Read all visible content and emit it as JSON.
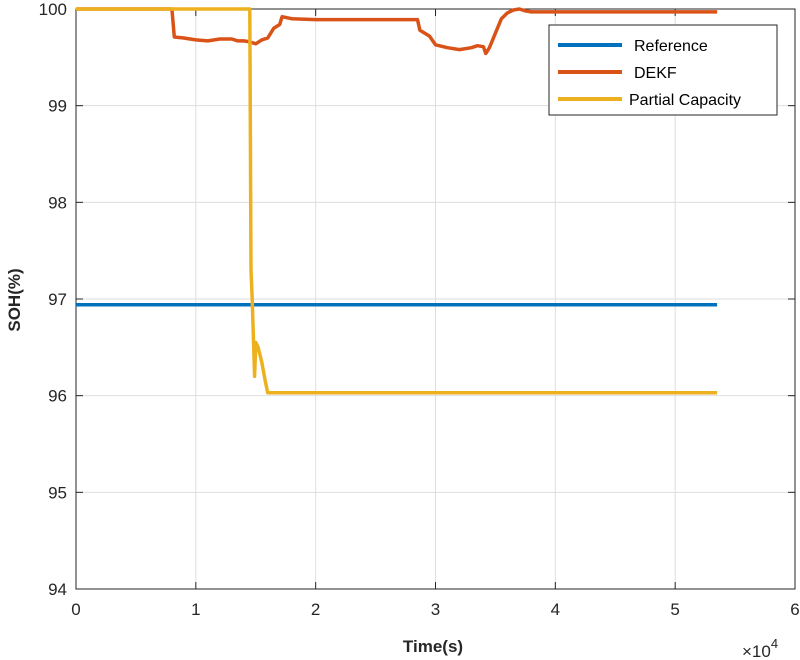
{
  "chart_data": {
    "type": "line",
    "title": "",
    "xlabel": "Time(s)",
    "ylabel": "SOH(%)",
    "x_exponent_label": "×10",
    "x_exponent_power": "4",
    "xlim": [
      0,
      6
    ],
    "ylim": [
      94,
      100
    ],
    "x_ticks": [
      0,
      1,
      2,
      3,
      4,
      5,
      6
    ],
    "y_ticks": [
      94,
      95,
      96,
      97,
      98,
      99,
      100
    ],
    "x_tick_labels": [
      "0",
      "1",
      "2",
      "3",
      "4",
      "5",
      "6"
    ],
    "y_tick_labels": [
      "94",
      "95",
      "96",
      "97",
      "98",
      "99",
      "100"
    ],
    "grid": true,
    "legend_position": "top-right",
    "series": [
      {
        "name": "Reference",
        "color": "#0072BD",
        "x": [
          0,
          5.35
        ],
        "y": [
          96.94,
          96.94
        ]
      },
      {
        "name": "DEKF",
        "color": "#D95319",
        "x": [
          0,
          0.8,
          0.82,
          0.9,
          1.0,
          1.1,
          1.2,
          1.3,
          1.35,
          1.4,
          1.45,
          1.5,
          1.55,
          1.6,
          1.65,
          1.7,
          1.72,
          1.8,
          2.0,
          2.5,
          2.85,
          2.87,
          2.95,
          3.0,
          3.1,
          3.2,
          3.3,
          3.35,
          3.4,
          3.42,
          3.45,
          3.5,
          3.55,
          3.6,
          3.65,
          3.7,
          3.75,
          3.8,
          4.0,
          5.35
        ],
        "y": [
          100,
          100,
          99.71,
          99.7,
          99.68,
          99.67,
          99.69,
          99.69,
          99.67,
          99.67,
          99.66,
          99.64,
          99.68,
          99.7,
          99.8,
          99.84,
          99.92,
          99.9,
          99.89,
          99.89,
          99.89,
          99.78,
          99.72,
          99.63,
          99.6,
          99.58,
          99.6,
          99.62,
          99.61,
          99.54,
          99.6,
          99.75,
          99.9,
          99.96,
          99.99,
          100,
          99.98,
          99.97,
          99.97,
          99.97
        ]
      },
      {
        "name": "Partial Capacity",
        "color": "#EDB120",
        "x": [
          0,
          1.45,
          1.46,
          1.47,
          1.48,
          1.49,
          1.5,
          1.52,
          1.55,
          1.58,
          1.6,
          1.7,
          2.0,
          3.0,
          5.35
        ],
        "y": [
          100,
          100,
          97.3,
          97.0,
          96.6,
          96.2,
          96.55,
          96.5,
          96.35,
          96.15,
          96.03,
          96.03,
          96.03,
          96.03,
          96.03
        ]
      }
    ]
  }
}
